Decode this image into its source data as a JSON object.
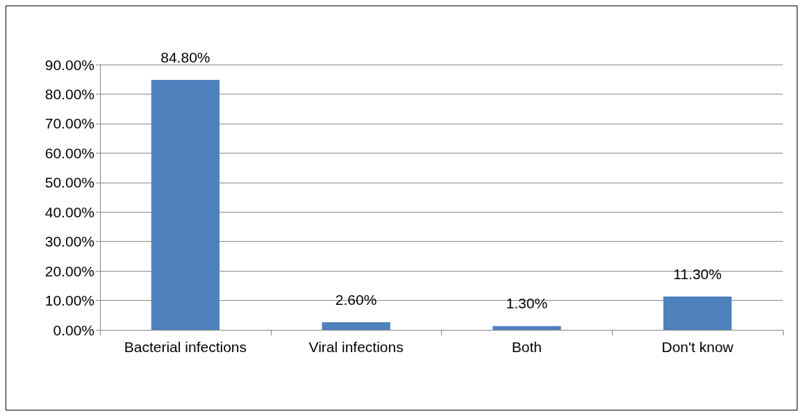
{
  "chart_data": {
    "type": "bar",
    "categories": [
      "Bacterial infections",
      "Viral infections",
      "Both",
      "Don't know"
    ],
    "values": [
      84.8,
      2.6,
      1.3,
      11.3
    ],
    "value_labels": [
      "84.80%",
      "2.60%",
      "1.30%",
      "11.30%"
    ],
    "color": "#4f81bd",
    "ylim": [
      0,
      90
    ],
    "yticks": [
      {
        "value": 0,
        "label": "0.00%"
      },
      {
        "value": 10,
        "label": "10.00%"
      },
      {
        "value": 20,
        "label": "20.00%"
      },
      {
        "value": 30,
        "label": "30.00%"
      },
      {
        "value": 40,
        "label": "40.00%"
      },
      {
        "value": 50,
        "label": "50.00%"
      },
      {
        "value": 60,
        "label": "60.00%"
      },
      {
        "value": 70,
        "label": "70.00%"
      },
      {
        "value": 80,
        "label": "80.00%"
      },
      {
        "value": 90,
        "label": "90.00%"
      }
    ],
    "grid": "y"
  }
}
